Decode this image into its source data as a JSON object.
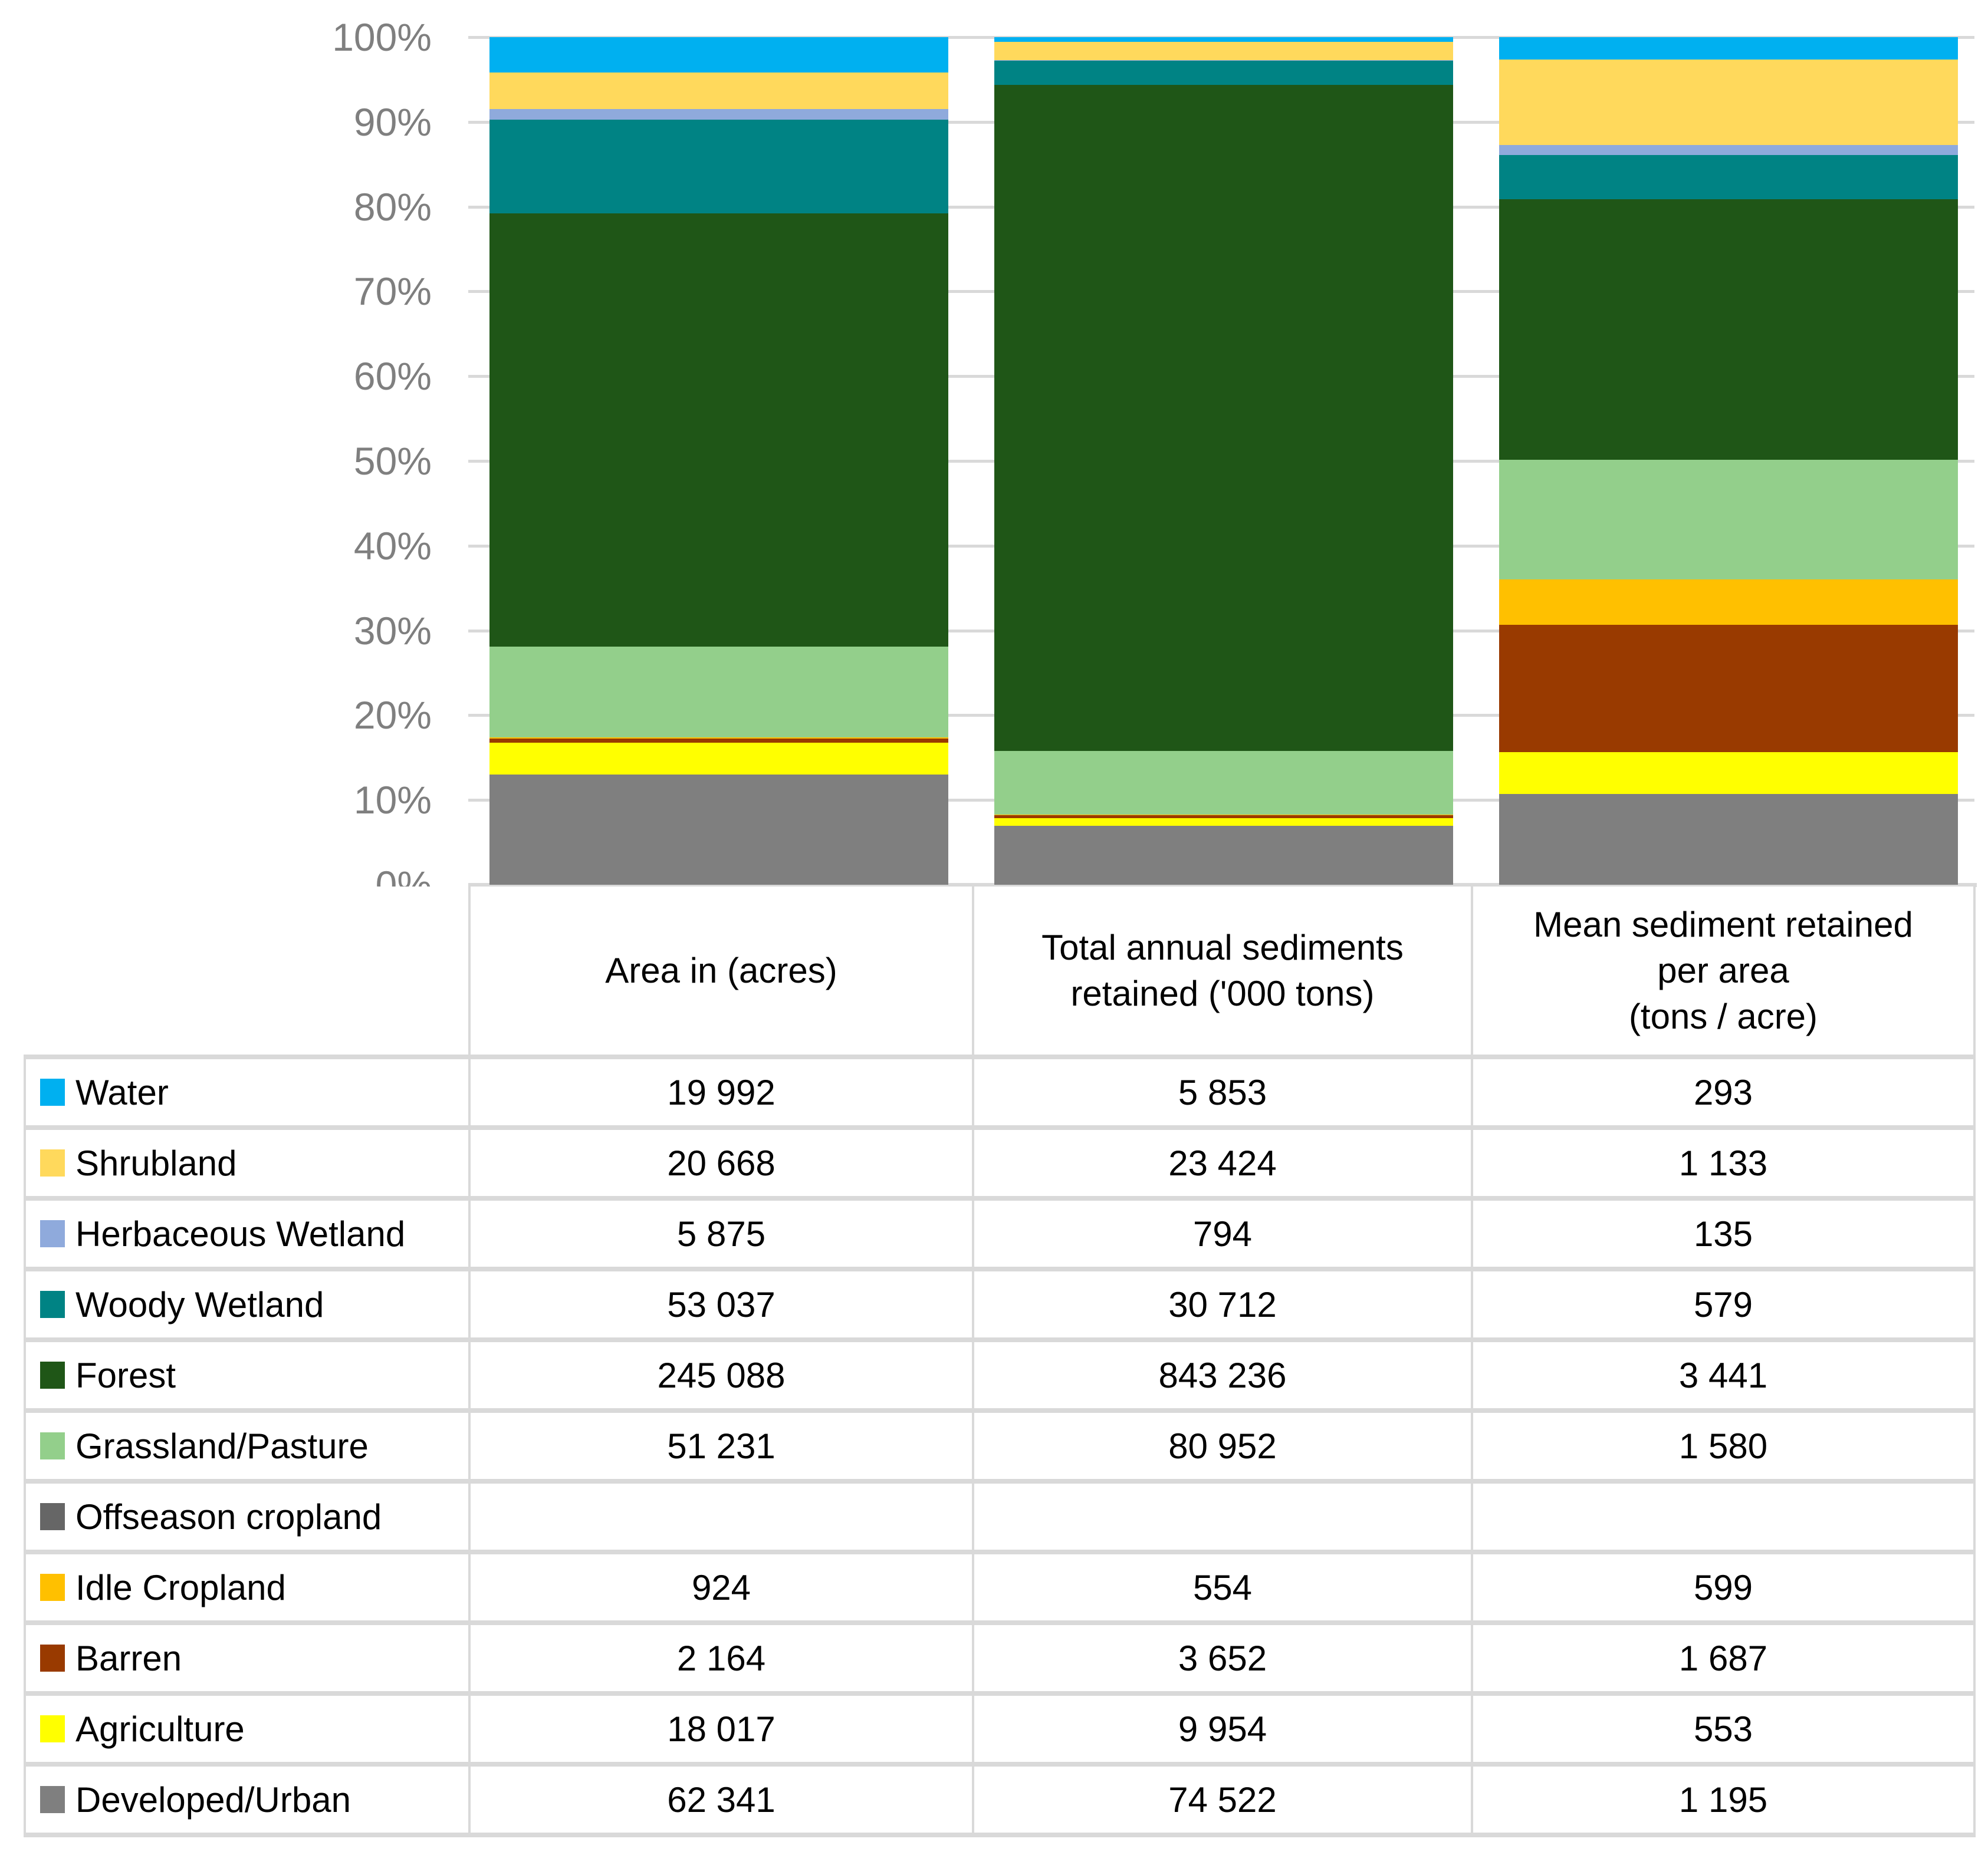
{
  "chart_data": {
    "type": "bar",
    "subtype": "stacked-100-percent",
    "title": "",
    "categories": [
      "Area in (acres)",
      "Total annual sediments retained ('000 tons)",
      "Mean sediment retained per area (tons / acre)"
    ],
    "series": [
      {
        "name": "Water",
        "color": "#00B0F0",
        "values": [
          19992,
          5853,
          293
        ]
      },
      {
        "name": "Shrubland",
        "color": "#FFD95C",
        "values": [
          20668,
          23424,
          1133
        ]
      },
      {
        "name": "Herbaceous Wetland",
        "color": "#8FAADC",
        "values": [
          5875,
          794,
          135
        ]
      },
      {
        "name": "Woody Wetland",
        "color": "#008384",
        "values": [
          53037,
          30712,
          579
        ]
      },
      {
        "name": "Forest",
        "color": "#1F5617",
        "values": [
          245088,
          843236,
          3441
        ]
      },
      {
        "name": "Grassland/Pasture",
        "color": "#93CF8B",
        "values": [
          51231,
          80952,
          1580
        ]
      },
      {
        "name": "Offseason cropland",
        "color": "#666666",
        "values": [
          null,
          null,
          null
        ]
      },
      {
        "name": "Idle Cropland",
        "color": "#FFC000",
        "values": [
          924,
          554,
          599
        ]
      },
      {
        "name": "Barren",
        "color": "#993A00",
        "values": [
          2164,
          3652,
          1687
        ]
      },
      {
        "name": "Agriculture",
        "color": "#FFFF00",
        "values": [
          18017,
          9954,
          553
        ]
      },
      {
        "name": "Developed/Urban",
        "color": "#7F7F7F",
        "values": [
          62341,
          74522,
          1195
        ]
      }
    ],
    "stacking": "first-series-at-top",
    "normalized": "percent-of-column-total",
    "ylim": [
      0,
      100
    ],
    "ytick_labels": [
      "0%",
      "10%",
      "20%",
      "30%",
      "40%",
      "50%",
      "60%",
      "70%",
      "80%",
      "90%",
      "100%"
    ],
    "grid": true,
    "gridline_color": "#D9D9D9",
    "axis_label_color": "#7F7F7F",
    "legend_position": "table-left-column"
  },
  "table": {
    "header_lines": [
      [
        "Area in (acres)"
      ],
      [
        "Total annual sediments",
        "retained ('000 tons)"
      ],
      [
        "Mean sediment retained",
        "per area",
        "(tons / acre)"
      ]
    ],
    "empty_cell_text": ""
  },
  "format": {
    "thousands_separator": " "
  }
}
